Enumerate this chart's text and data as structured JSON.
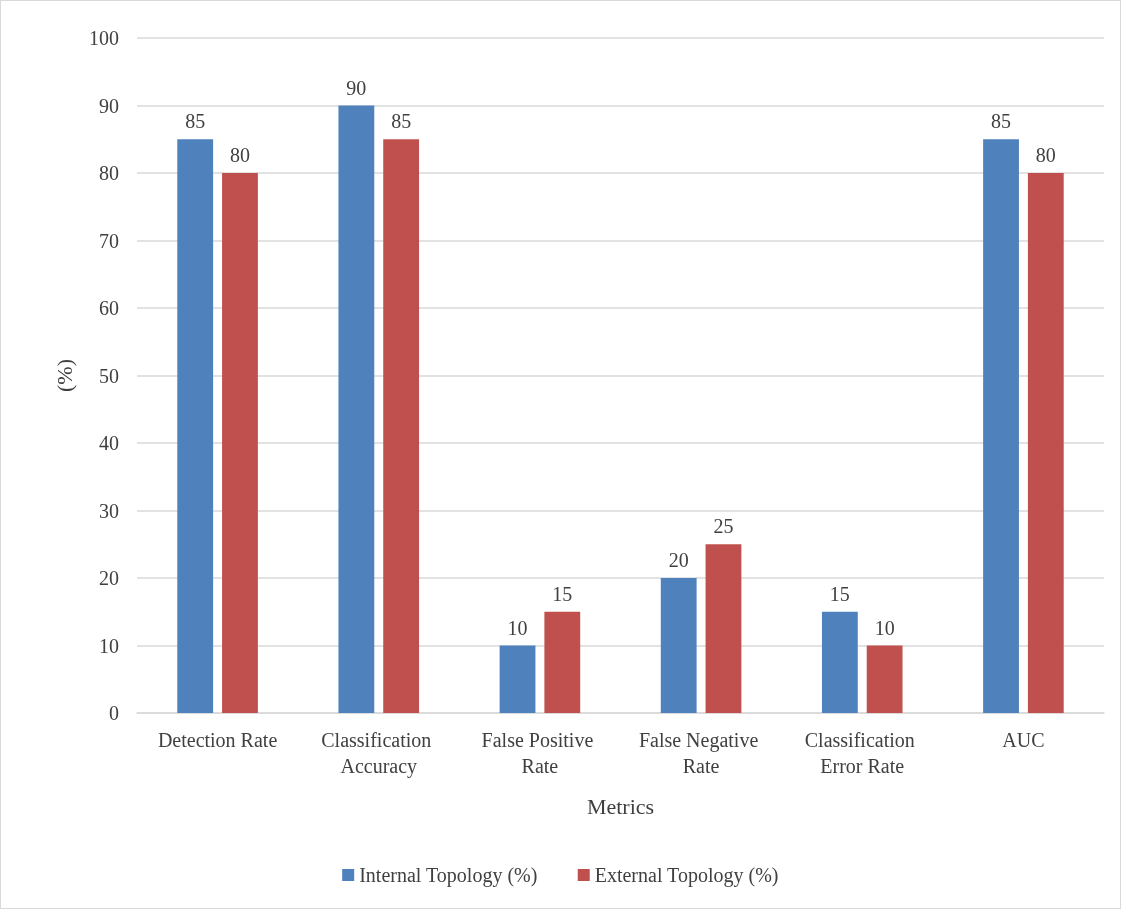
{
  "chart_data": {
    "type": "bar",
    "xlabel": "Metrics",
    "ylabel": "(%)",
    "categories": [
      "Detection Rate",
      "Classification Accuracy",
      "False Positive Rate",
      "False Negative Rate",
      "Classification Error Rate",
      "AUC"
    ],
    "series": [
      {
        "name": "Internal Topology (%)",
        "color": "#4f81bd",
        "values": [
          85,
          90,
          10,
          20,
          15,
          85
        ]
      },
      {
        "name": "External Topology (%)",
        "color": "#c0504d",
        "values": [
          80,
          85,
          15,
          25,
          10,
          80
        ]
      }
    ],
    "ylim": [
      0,
      100
    ],
    "yticks": [
      0,
      10,
      20,
      30,
      40,
      50,
      60,
      70,
      80,
      90,
      100
    ],
    "grid": "y",
    "legend": "bottom",
    "data_labels": true
  }
}
